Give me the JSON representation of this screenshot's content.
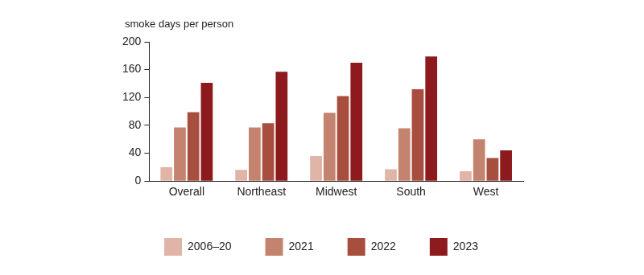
{
  "chart_data": {
    "type": "bar",
    "y_label": "smoke days per person",
    "categories": [
      "Overall",
      "Northeast",
      "Midwest",
      "South",
      "West"
    ],
    "series": [
      {
        "name": "2006–20",
        "color": "#e0b4a6",
        "values": [
          20,
          16,
          36,
          17,
          14
        ]
      },
      {
        "name": "2021",
        "color": "#c4836e",
        "values": [
          77,
          77,
          98,
          76,
          60
        ]
      },
      {
        "name": "2022",
        "color": "#a84e3e",
        "values": [
          99,
          83,
          122,
          132,
          33
        ]
      },
      {
        "name": "2023",
        "color": "#8d1a1d",
        "values": [
          141,
          157,
          170,
          179,
          44
        ]
      }
    ],
    "ylim": [
      0,
      200
    ],
    "yticks": [
      0,
      40,
      80,
      120,
      160,
      200
    ],
    "grid": false,
    "legend": "bottom"
  }
}
